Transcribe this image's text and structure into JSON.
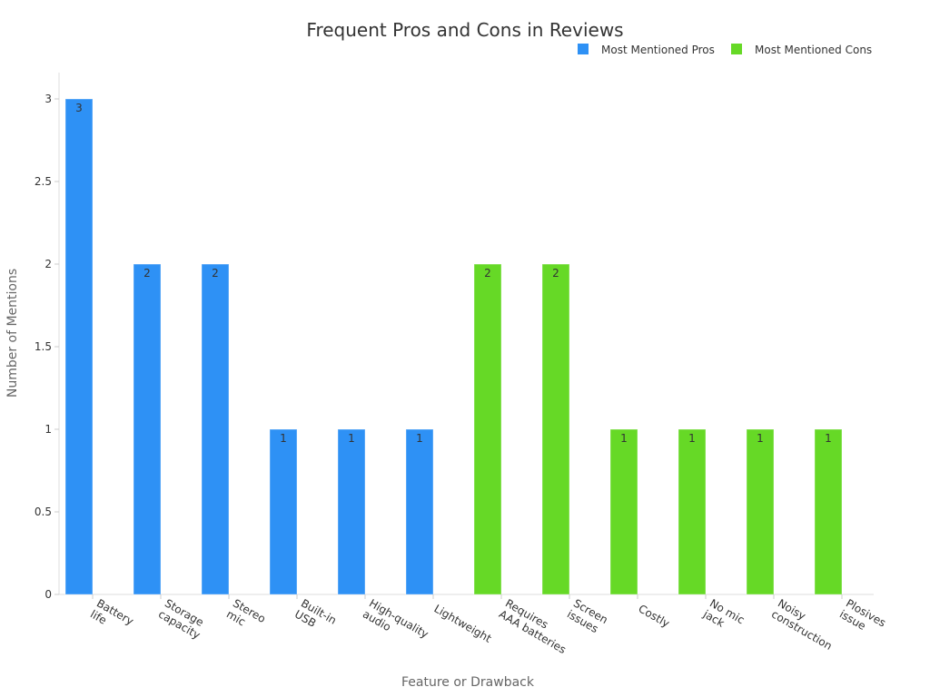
{
  "chart_data": {
    "type": "bar",
    "title": "Frequent Pros and Cons in Reviews",
    "xlabel": "Feature or Drawback",
    "ylabel": "Number of Mentions",
    "ylim": [
      0,
      3
    ],
    "yticks": [
      "0",
      "0.5",
      "1",
      "1.5",
      "2",
      "2.5",
      "3"
    ],
    "grid": false,
    "legend_position": "top-right",
    "categories": [
      [
        "Battery",
        "life"
      ],
      [
        "Storage",
        "capacity"
      ],
      [
        "Stereo",
        "mic"
      ],
      [
        "Built-in",
        "USB"
      ],
      [
        "High-quality",
        "audio"
      ],
      [
        "Lightweight"
      ],
      [
        "Requires",
        "AAA batteries"
      ],
      [
        "Screen",
        "issues"
      ],
      [
        "Costly"
      ],
      [
        "No mic",
        "jack"
      ],
      [
        "Noisy",
        "construction"
      ],
      [
        "Plosives",
        "issue"
      ]
    ],
    "series": [
      {
        "name": "Most Mentioned Pros",
        "color": "#2e91f5",
        "values": [
          3,
          2,
          2,
          1,
          1,
          1,
          null,
          null,
          null,
          null,
          null,
          null
        ]
      },
      {
        "name": "Most Mentioned Cons",
        "color": "#66d926",
        "values": [
          null,
          null,
          null,
          null,
          null,
          null,
          2,
          2,
          1,
          1,
          1,
          1
        ]
      }
    ]
  }
}
